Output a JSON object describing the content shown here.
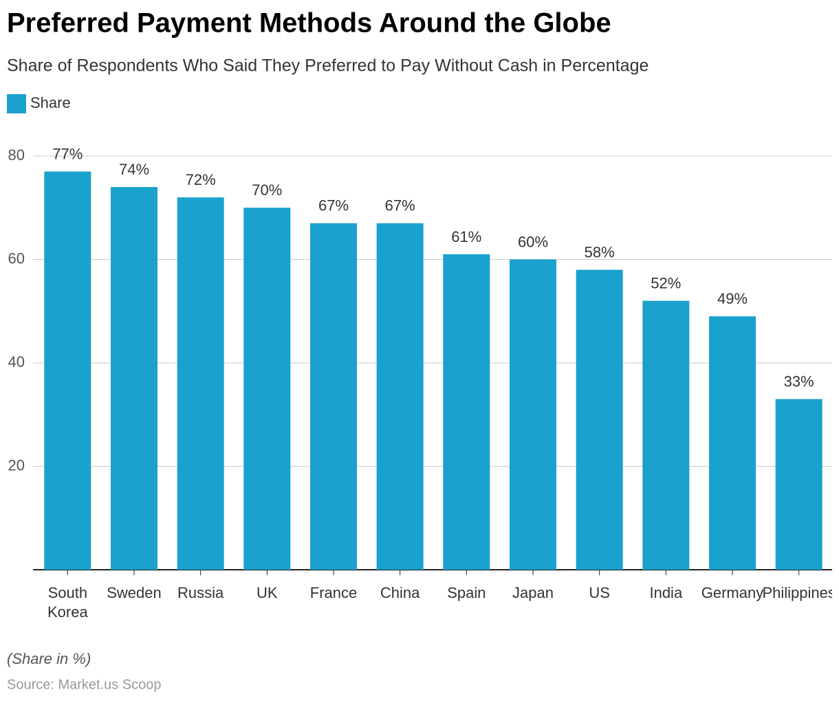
{
  "chart_data": {
    "type": "bar",
    "title": "Preferred Payment Methods Around the Globe",
    "subtitle": "Share of Respondents Who Said They Preferred to Pay Without Cash in Percentage",
    "categories": [
      "South Korea",
      "Sweden",
      "Russia",
      "UK",
      "France",
      "China",
      "Spain",
      "Japan",
      "US",
      "India",
      "Germany",
      "Philippines"
    ],
    "series": [
      {
        "name": "Share",
        "color": "#1aa1cd",
        "values": [
          77,
          74,
          72,
          70,
          67,
          67,
          61,
          60,
          58,
          52,
          49,
          33
        ],
        "value_labels": [
          "77%",
          "74%",
          "72%",
          "70%",
          "67%",
          "67%",
          "61%",
          "60%",
          "58%",
          "52%",
          "49%",
          "33%"
        ]
      }
    ],
    "ylim": [
      0,
      80
    ],
    "yticks": [
      20,
      40,
      60,
      80
    ],
    "grid": true,
    "annotation": "(Share in %)",
    "source": "Source: Market.us Scoop"
  }
}
